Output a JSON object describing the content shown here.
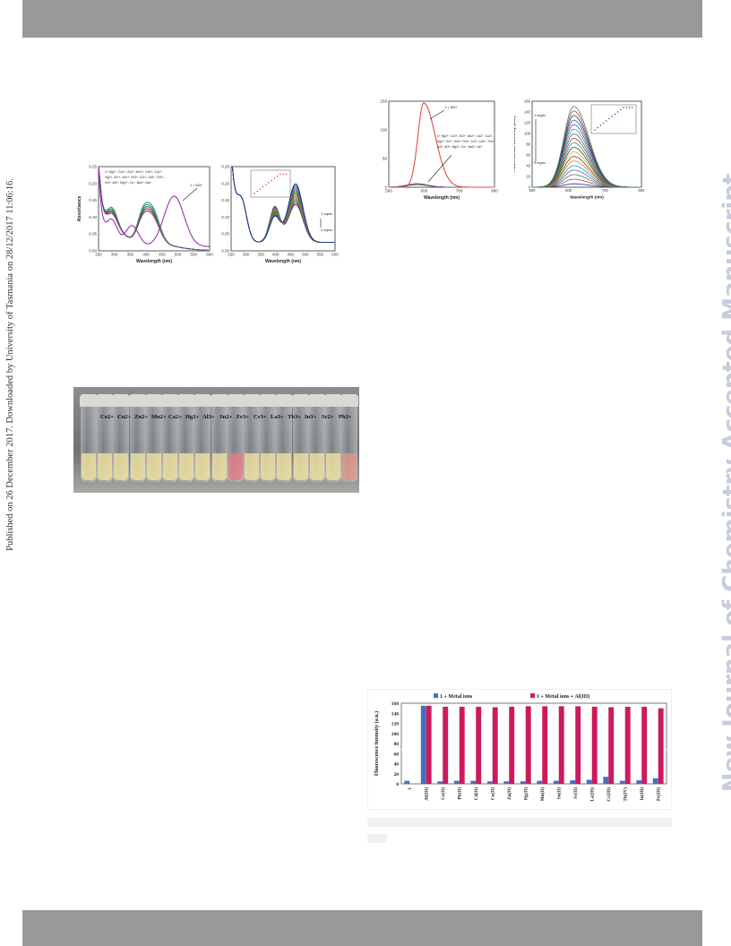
{
  "side_note": "Published on 26 December 2017. Downloaded by University of Tasmania on 28/12/2017 11:06:16.",
  "watermark": "New Journal of Chemistry Accepted Manuscript",
  "colors": {
    "band": "#999999",
    "watermark": "#c7cbdf",
    "al_series": "#cc1a5e",
    "blank_series": "#4a6ebd"
  },
  "fig_uv_a": {
    "ylabel": "Absorbance",
    "xlabel": "Wavelength (nm)",
    "yticks": [
      "0.00",
      "0.05",
      "0.10",
      "0.15",
      "0.20",
      "0.25"
    ],
    "xticks": [
      "250",
      "300",
      "350",
      "400",
      "450",
      "500",
      "550",
      "600"
    ],
    "legend_lines": [
      "1+ Hg2+, Co2+, Zn2+, Mn2+, Ca2+, Cu2+,",
      "Hg2+, Sr2+, Sn2+, Fe3+, Cr3+, La3+, Tb3+,",
      "In3+, Al3+, Mg2+, Cs+, Ba2+, Na+"
    ],
    "arrow_label": "1 + Al3+"
  },
  "fig_uv_b": {
    "ylabel": "Absorbance",
    "xlabel": "Wavelength (nm)",
    "yticks": [
      "0.00",
      "0.05",
      "0.10",
      "0.15",
      "0.20",
      "0.25"
    ],
    "xticks": [
      "250",
      "300",
      "350",
      "400",
      "450",
      "500",
      "550",
      "600"
    ],
    "equiv_top": "1 equiv.",
    "equiv_bottom": "0 equiv."
  },
  "fig_fl_a": {
    "ylabel": "Fluorescence Intensity (a.u.)",
    "xlabel": "Wavelength (nm)",
    "yticks": [
      "0",
      "50",
      "100",
      "150"
    ],
    "xticks": [
      "500",
      "600",
      "700",
      "800"
    ],
    "arrow_label": "1 + Al3+",
    "legend_lines": [
      "1+ Hg2+, Co2+, Zn2+, Mn2+, Ca2+, Cu2+,",
      "Hg2+, Sr2+, Sn2+, Fe3+, Cr3+, La3+, Tb3+,",
      "In3+, Al3+, Mg2+, Cs+, Ba2+, Na+"
    ]
  },
  "fig_fl_b": {
    "ylabel": "Fluorescence Intensity (a.u.)",
    "xlabel": "Wavelength (nm)",
    "yticks": [
      "0",
      "20",
      "40",
      "60",
      "80",
      "100",
      "120",
      "140",
      "160"
    ],
    "xticks": [
      "500",
      "600",
      "700",
      "800"
    ],
    "equiv_top": "1 equiv.",
    "equiv_bottom": "0 equiv."
  },
  "photo": {
    "labels": [
      "Co2+",
      "Cu2+",
      "Zn2+",
      "Mn2+",
      "Ca2+",
      "Hg2+",
      "Al3+",
      "Sn2+",
      "Fe3+",
      "Cr3+",
      "La3+",
      "Tb3+",
      "In3+",
      "Sr2+",
      "Pb2+"
    ]
  },
  "chart_data": [
    {
      "type": "bar",
      "categories": [
        "1",
        "Al(III)",
        "Co(II)",
        "Pb(II)",
        "Cd(II)",
        "Cu(II)",
        "Zn(II)",
        "Hg(II)",
        "Mn(II)",
        "Sn(II)",
        "Sr(II)",
        "La(III)",
        "Cr(III)",
        "Th(IV)",
        "In(III)",
        "Fe(III)"
      ],
      "ylabel": "Fluorescence Intensity (a.u.)",
      "ylim": [
        0,
        160
      ],
      "yticks": [
        "0",
        "20",
        "40",
        "60",
        "80",
        "100",
        "120",
        "140",
        "160"
      ],
      "series": [
        {
          "name": "1 + Metal ions",
          "values": [
            6,
            155,
            5,
            6,
            6,
            5,
            5,
            5,
            6,
            6,
            7,
            8,
            14,
            6,
            7,
            11
          ]
        },
        {
          "name": "1 + Metal ions + Al(III)",
          "values": [
            null,
            155,
            153,
            153,
            153,
            152,
            153,
            154,
            154,
            154,
            154,
            153,
            152,
            153,
            153,
            150
          ]
        }
      ],
      "legend": "top"
    }
  ]
}
